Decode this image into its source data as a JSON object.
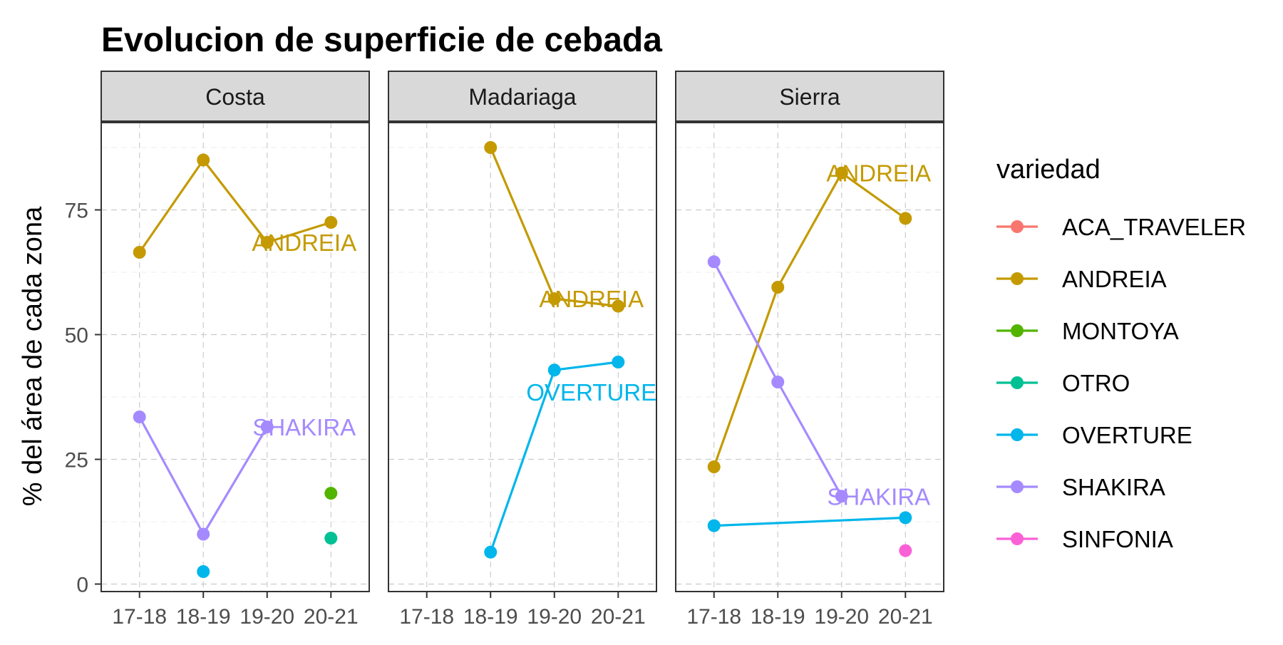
{
  "chart_data": {
    "type": "line",
    "title": "Evolucion de superficie de cebada",
    "xlabel": "",
    "ylabel": "% del área de cada zona",
    "categories": [
      "17-18",
      "18-19",
      "19-20",
      "20-21"
    ],
    "ylim": [
      -1.5,
      92.5
    ],
    "yticks": [
      0,
      25,
      50,
      75
    ],
    "grid": true,
    "legend": {
      "title": "variedad",
      "position": "right",
      "entries": [
        "ACA_TRAVELER",
        "ANDREIA",
        "MONTOYA",
        "OTRO",
        "OVERTURE",
        "SHAKIRA",
        "SINFONIA"
      ]
    },
    "colors": {
      "ACA_TRAVELER": "#F8766D",
      "ANDREIA": "#C49A00",
      "MONTOYA": "#53B400",
      "OTRO": "#00C094",
      "OVERTURE": "#00B6EB",
      "SHAKIRA": "#A58AFF",
      "SINFONIA": "#FB61D7"
    },
    "panels": [
      {
        "name": "Costa",
        "series": [
          {
            "variety": "ANDREIA",
            "values": [
              66.5,
              85,
              68.5,
              72.5
            ]
          },
          {
            "variety": "SHAKIRA",
            "values": [
              33.5,
              10,
              31.5,
              null
            ]
          },
          {
            "variety": "OVERTURE",
            "values": [
              null,
              2.5,
              null,
              null
            ]
          },
          {
            "variety": "MONTOYA",
            "values": [
              null,
              null,
              null,
              18.2
            ]
          },
          {
            "variety": "OTRO",
            "values": [
              null,
              null,
              null,
              9.2
            ]
          }
        ],
        "labels": [
          {
            "text": "ANDREIA",
            "variety": "ANDREIA",
            "x": "19-20",
            "y": 68.5
          },
          {
            "text": "SHAKIRA",
            "variety": "SHAKIRA",
            "x": "19-20",
            "y": 31.5
          }
        ]
      },
      {
        "name": "Madariaga",
        "series": [
          {
            "variety": "ANDREIA",
            "values": [
              null,
              87.5,
              57.2,
              55.7
            ]
          },
          {
            "variety": "OVERTURE",
            "values": [
              null,
              6.4,
              42.9,
              44.5
            ]
          }
        ],
        "labels": [
          {
            "text": "ANDREIA",
            "variety": "ANDREIA",
            "x": "19-20",
            "y": 57.2
          },
          {
            "text": "OVERTURE",
            "variety": "OVERTURE",
            "x": "19-20",
            "y": 38.5
          }
        ]
      },
      {
        "name": "Sierra",
        "series": [
          {
            "variety": "ANDREIA",
            "values": [
              23.5,
              59.5,
              82.4,
              73.3
            ]
          },
          {
            "variety": "SHAKIRA",
            "values": [
              64.6,
              40.5,
              17.6,
              null
            ]
          },
          {
            "variety": "OVERTURE",
            "values": [
              11.7,
              null,
              null,
              13.3
            ]
          },
          {
            "variety": "SINFONIA",
            "values": [
              null,
              null,
              null,
              6.7
            ]
          }
        ],
        "labels": [
          {
            "text": "ANDREIA",
            "variety": "ANDREIA",
            "x": "19-20",
            "y": 82.4
          },
          {
            "text": "SHAKIRA",
            "variety": "SHAKIRA",
            "x": "19-20",
            "y": 17.6
          }
        ]
      }
    ]
  }
}
